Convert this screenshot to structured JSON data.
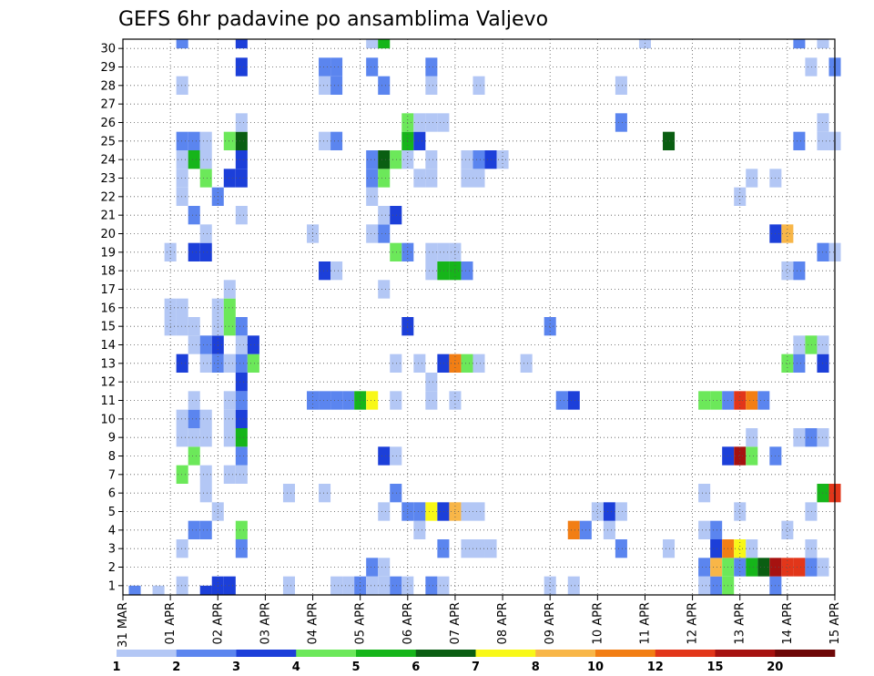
{
  "chart_data": {
    "type": "heatmap",
    "title": "GEFS 6hr padavine po ansamblima Valjevo",
    "x_tick_labels": [
      "31 MAR",
      "01 APR",
      "02 APR",
      "03 APR",
      "04 APR",
      "05 APR",
      "06 APR",
      "07 APR",
      "08 APR",
      "09 APR",
      "10 APR",
      "11 APR",
      "12 APR",
      "13 APR",
      "14 APR",
      "15 APR"
    ],
    "y_tick_labels": [
      "1",
      "2",
      "3",
      "4",
      "5",
      "6",
      "7",
      "8",
      "9",
      "10",
      "11",
      "12",
      "13",
      "14",
      "15",
      "16",
      "17",
      "18",
      "19",
      "20",
      "21",
      "22",
      "23",
      "24",
      "25",
      "26",
      "27",
      "28",
      "29",
      "30"
    ],
    "x_range_steps": [
      0,
      60
    ],
    "y_range_members": [
      1,
      30
    ],
    "steps_per_day": 4,
    "grid": true,
    "colorbar": {
      "placement": "bottom",
      "labels": [
        "1",
        "2",
        "3",
        "4",
        "5",
        "6",
        "7",
        "8",
        "10",
        "12",
        "15",
        "20"
      ],
      "colors": [
        "#b3c7f5",
        "#5b85ef",
        "#1c3fd9",
        "#6ce85a",
        "#16b51a",
        "#0a5e12",
        "#f8f818",
        "#f8b648",
        "#f27e14",
        "#e2361a",
        "#a61210",
        "#6e0808"
      ]
    },
    "cells": [
      [
        1,
        0,
        1
      ],
      [
        3,
        0,
        0
      ],
      [
        7,
        0,
        2
      ],
      [
        8,
        0,
        2
      ],
      [
        9,
        0,
        0
      ],
      [
        5,
        1,
        0
      ],
      [
        8,
        1,
        2
      ],
      [
        9,
        1,
        2
      ],
      [
        14,
        1,
        0
      ],
      [
        18,
        1,
        0
      ],
      [
        19,
        1,
        0
      ],
      [
        20,
        1,
        1
      ],
      [
        21,
        1,
        0
      ],
      [
        22,
        1,
        0
      ],
      [
        23,
        1,
        1
      ],
      [
        24,
        1,
        0
      ],
      [
        26,
        1,
        1
      ],
      [
        27,
        1,
        0
      ],
      [
        36,
        1,
        0
      ],
      [
        38,
        1,
        0
      ],
      [
        49,
        1,
        0
      ],
      [
        50,
        1,
        1
      ],
      [
        51,
        1,
        3
      ],
      [
        55,
        1,
        1
      ],
      [
        21,
        2,
        1
      ],
      [
        22,
        2,
        0
      ],
      [
        49,
        2,
        1
      ],
      [
        50,
        2,
        7
      ],
      [
        51,
        2,
        3
      ],
      [
        52,
        2,
        1
      ],
      [
        53,
        2,
        4
      ],
      [
        54,
        2,
        5
      ],
      [
        55,
        2,
        10
      ],
      [
        56,
        2,
        9
      ],
      [
        57,
        2,
        9
      ],
      [
        58,
        2,
        1
      ],
      [
        59,
        2,
        0
      ],
      [
        5,
        3,
        0
      ],
      [
        10,
        3,
        1
      ],
      [
        27,
        3,
        1
      ],
      [
        29,
        3,
        0
      ],
      [
        30,
        3,
        0
      ],
      [
        31,
        3,
        0
      ],
      [
        42,
        3,
        1
      ],
      [
        46,
        3,
        0
      ],
      [
        50,
        3,
        2
      ],
      [
        51,
        3,
        8
      ],
      [
        52,
        3,
        6
      ],
      [
        53,
        3,
        0
      ],
      [
        58,
        3,
        0
      ],
      [
        6,
        4,
        1
      ],
      [
        7,
        4,
        1
      ],
      [
        10,
        4,
        3
      ],
      [
        25,
        4,
        0
      ],
      [
        38,
        4,
        8
      ],
      [
        39,
        4,
        1
      ],
      [
        41,
        4,
        0
      ],
      [
        49,
        4,
        0
      ],
      [
        50,
        4,
        1
      ],
      [
        56,
        4,
        0
      ],
      [
        8,
        5,
        0
      ],
      [
        22,
        5,
        0
      ],
      [
        24,
        5,
        1
      ],
      [
        25,
        5,
        1
      ],
      [
        26,
        5,
        6
      ],
      [
        27,
        5,
        2
      ],
      [
        28,
        5,
        7
      ],
      [
        29,
        5,
        0
      ],
      [
        30,
        5,
        0
      ],
      [
        40,
        5,
        0
      ],
      [
        41,
        5,
        2
      ],
      [
        42,
        5,
        0
      ],
      [
        52,
        5,
        0
      ],
      [
        58,
        5,
        0
      ],
      [
        7,
        6,
        0
      ],
      [
        14,
        6,
        0
      ],
      [
        17,
        6,
        0
      ],
      [
        23,
        6,
        1
      ],
      [
        49,
        6,
        0
      ],
      [
        59,
        6,
        4
      ],
      [
        60,
        6,
        9
      ],
      [
        5,
        7,
        3
      ],
      [
        7,
        7,
        0
      ],
      [
        9,
        7,
        0
      ],
      [
        10,
        7,
        0
      ],
      [
        6,
        8,
        3
      ],
      [
        10,
        8,
        1
      ],
      [
        22,
        8,
        2
      ],
      [
        23,
        8,
        0
      ],
      [
        51,
        8,
        2
      ],
      [
        52,
        8,
        10
      ],
      [
        53,
        8,
        3
      ],
      [
        55,
        8,
        1
      ],
      [
        5,
        9,
        0
      ],
      [
        6,
        9,
        0
      ],
      [
        7,
        9,
        0
      ],
      [
        9,
        9,
        0
      ],
      [
        10,
        9,
        4
      ],
      [
        53,
        9,
        0
      ],
      [
        57,
        9,
        0
      ],
      [
        58,
        9,
        1
      ],
      [
        59,
        9,
        0
      ],
      [
        5,
        10,
        0
      ],
      [
        6,
        10,
        1
      ],
      [
        7,
        10,
        0
      ],
      [
        9,
        10,
        0
      ],
      [
        10,
        10,
        2
      ],
      [
        6,
        11,
        0
      ],
      [
        9,
        11,
        0
      ],
      [
        10,
        11,
        1
      ],
      [
        16,
        11,
        1
      ],
      [
        17,
        11,
        1
      ],
      [
        18,
        11,
        1
      ],
      [
        19,
        11,
        1
      ],
      [
        20,
        11,
        4
      ],
      [
        21,
        11,
        6
      ],
      [
        23,
        11,
        0
      ],
      [
        26,
        11,
        0
      ],
      [
        28,
        11,
        0
      ],
      [
        37,
        11,
        1
      ],
      [
        38,
        11,
        2
      ],
      [
        49,
        11,
        3
      ],
      [
        50,
        11,
        3
      ],
      [
        51,
        11,
        1
      ],
      [
        52,
        11,
        9
      ],
      [
        53,
        11,
        8
      ],
      [
        54,
        11,
        1
      ],
      [
        10,
        12,
        2
      ],
      [
        26,
        12,
        0
      ],
      [
        5,
        13,
        2
      ],
      [
        7,
        13,
        0
      ],
      [
        8,
        13,
        1
      ],
      [
        9,
        13,
        0
      ],
      [
        10,
        13,
        1
      ],
      [
        11,
        13,
        3
      ],
      [
        23,
        13,
        0
      ],
      [
        25,
        13,
        0
      ],
      [
        27,
        13,
        2
      ],
      [
        28,
        13,
        8
      ],
      [
        29,
        13,
        3
      ],
      [
        30,
        13,
        0
      ],
      [
        34,
        13,
        0
      ],
      [
        56,
        13,
        3
      ],
      [
        57,
        13,
        1
      ],
      [
        59,
        13,
        2
      ],
      [
        6,
        14,
        0
      ],
      [
        7,
        14,
        1
      ],
      [
        8,
        14,
        2
      ],
      [
        10,
        14,
        0
      ],
      [
        11,
        14,
        2
      ],
      [
        57,
        14,
        0
      ],
      [
        58,
        14,
        3
      ],
      [
        59,
        14,
        0
      ],
      [
        4,
        15,
        0
      ],
      [
        5,
        15,
        0
      ],
      [
        6,
        15,
        0
      ],
      [
        8,
        15,
        0
      ],
      [
        9,
        15,
        3
      ],
      [
        10,
        15,
        1
      ],
      [
        24,
        15,
        2
      ],
      [
        36,
        15,
        1
      ],
      [
        4,
        16,
        0
      ],
      [
        5,
        16,
        0
      ],
      [
        8,
        16,
        0
      ],
      [
        9,
        16,
        3
      ],
      [
        9,
        17,
        0
      ],
      [
        22,
        17,
        0
      ],
      [
        17,
        18,
        2
      ],
      [
        18,
        18,
        0
      ],
      [
        26,
        18,
        0
      ],
      [
        27,
        18,
        4
      ],
      [
        28,
        18,
        4
      ],
      [
        29,
        18,
        1
      ],
      [
        56,
        18,
        0
      ],
      [
        57,
        18,
        1
      ],
      [
        23,
        19,
        3
      ],
      [
        24,
        19,
        1
      ],
      [
        26,
        19,
        0
      ],
      [
        27,
        19,
        0
      ],
      [
        28,
        19,
        0
      ],
      [
        4,
        19,
        0
      ],
      [
        6,
        19,
        2
      ],
      [
        7,
        19,
        2
      ],
      [
        59,
        19,
        1
      ],
      [
        60,
        19,
        0
      ],
      [
        7,
        20,
        0
      ],
      [
        16,
        20,
        0
      ],
      [
        21,
        20,
        0
      ],
      [
        22,
        20,
        1
      ],
      [
        55,
        20,
        2
      ],
      [
        56,
        20,
        7
      ],
      [
        6,
        21,
        1
      ],
      [
        10,
        21,
        0
      ],
      [
        22,
        21,
        0
      ],
      [
        23,
        21,
        2
      ],
      [
        5,
        22,
        0
      ],
      [
        8,
        22,
        1
      ],
      [
        21,
        22,
        0
      ],
      [
        52,
        22,
        0
      ],
      [
        5,
        23,
        0
      ],
      [
        7,
        23,
        3
      ],
      [
        9,
        23,
        2
      ],
      [
        10,
        23,
        2
      ],
      [
        21,
        23,
        1
      ],
      [
        22,
        23,
        3
      ],
      [
        25,
        23,
        0
      ],
      [
        26,
        23,
        0
      ],
      [
        29,
        23,
        0
      ],
      [
        30,
        23,
        0
      ],
      [
        53,
        23,
        0
      ],
      [
        55,
        23,
        0
      ],
      [
        5,
        24,
        0
      ],
      [
        6,
        24,
        4
      ],
      [
        7,
        24,
        0
      ],
      [
        10,
        24,
        2
      ],
      [
        21,
        24,
        1
      ],
      [
        22,
        24,
        5
      ],
      [
        23,
        24,
        3
      ],
      [
        24,
        24,
        0
      ],
      [
        26,
        24,
        0
      ],
      [
        29,
        24,
        0
      ],
      [
        30,
        24,
        1
      ],
      [
        31,
        24,
        2
      ],
      [
        32,
        24,
        0
      ],
      [
        5,
        25,
        1
      ],
      [
        6,
        25,
        1
      ],
      [
        7,
        25,
        0
      ],
      [
        9,
        25,
        3
      ],
      [
        10,
        25,
        5
      ],
      [
        17,
        25,
        0
      ],
      [
        18,
        25,
        1
      ],
      [
        24,
        25,
        4
      ],
      [
        25,
        25,
        2
      ],
      [
        46,
        25,
        5
      ],
      [
        57,
        25,
        1
      ],
      [
        59,
        25,
        0
      ],
      [
        60,
        25,
        0
      ],
      [
        10,
        26,
        0
      ],
      [
        24,
        26,
        3
      ],
      [
        25,
        26,
        0
      ],
      [
        26,
        26,
        0
      ],
      [
        27,
        26,
        0
      ],
      [
        42,
        26,
        1
      ],
      [
        59,
        26,
        0
      ],
      [
        5,
        28,
        0
      ],
      [
        17,
        28,
        0
      ],
      [
        18,
        28,
        1
      ],
      [
        22,
        28,
        1
      ],
      [
        26,
        28,
        0
      ],
      [
        30,
        28,
        0
      ],
      [
        42,
        28,
        0
      ],
      [
        10,
        29,
        2
      ],
      [
        17,
        29,
        1
      ],
      [
        18,
        29,
        1
      ],
      [
        21,
        29,
        1
      ],
      [
        26,
        29,
        1
      ],
      [
        58,
        29,
        0
      ],
      [
        60,
        29,
        1
      ],
      [
        5,
        30,
        1
      ],
      [
        10,
        30,
        2
      ],
      [
        21,
        30,
        0
      ],
      [
        22,
        30,
        4
      ],
      [
        44,
        30,
        0
      ],
      [
        57,
        30,
        1
      ],
      [
        59,
        30,
        0
      ]
    ]
  }
}
